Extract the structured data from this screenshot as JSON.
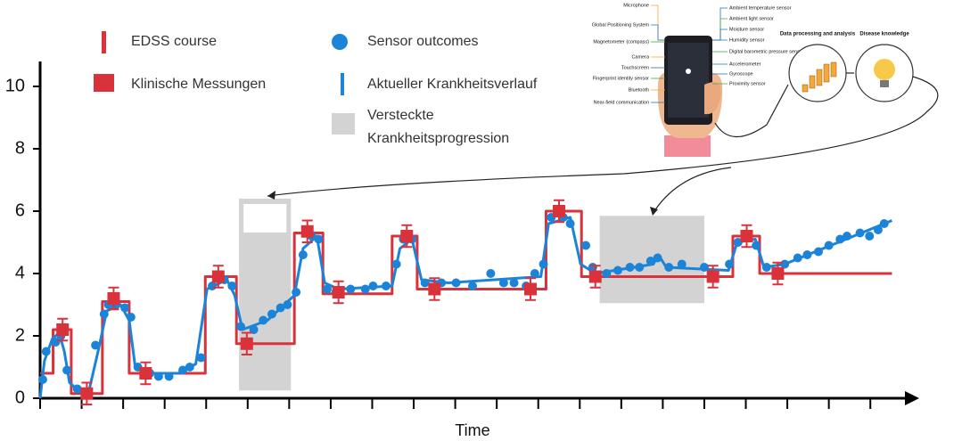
{
  "chart_data": {
    "type": "line",
    "x_label": "Time",
    "xlim": [
      0,
      100
    ],
    "xticks": [
      0,
      4.8,
      9.6,
      14.4,
      19.2,
      24,
      28.8,
      33.6,
      38.4,
      43.2,
      48,
      52.8,
      57.6,
      62.4,
      67.2,
      72,
      76.8,
      81.6,
      86.4,
      91.2,
      96
    ],
    "ylim": [
      0,
      10.8
    ],
    "yticks": [
      0,
      2,
      4,
      6,
      8,
      10
    ],
    "series": [
      {
        "name": "EDSS course",
        "color": "#d9323a",
        "x": [
          0,
          1.5,
          1.5,
          3.6,
          3.6,
          7.2,
          7.2,
          10.3,
          10.3,
          19.1,
          19.1,
          22.7,
          22.7,
          29.4,
          29.4,
          32.7,
          32.7,
          40.7,
          40.7,
          43.6,
          43.6,
          58.5,
          58.5,
          62.6,
          62.6,
          80.1,
          80.1,
          83.2,
          83.2,
          98.5
        ],
        "values": [
          0.8,
          0.8,
          2.2,
          2.2,
          0.15,
          0.15,
          3.1,
          3.1,
          0.8,
          0.8,
          3.9,
          3.9,
          1.75,
          1.75,
          5.3,
          5.3,
          3.35,
          3.35,
          5.2,
          5.2,
          3.5,
          3.5,
          6.0,
          6.0,
          3.9,
          3.9,
          5.2,
          5.2,
          4.0,
          4.0
        ]
      },
      {
        "name": "Klinische Messungen",
        "color": "#d9323a",
        "marker": "square",
        "x": [
          2.6,
          5.4,
          8.5,
          12.2,
          20.6,
          23.9,
          30.9,
          34.5,
          42.4,
          45.6,
          56.7,
          60.0,
          64.2,
          77.8,
          81.7,
          85.3
        ],
        "values": [
          2.2,
          0.15,
          3.2,
          0.8,
          3.9,
          1.75,
          5.35,
          3.4,
          5.2,
          3.5,
          3.5,
          6.0,
          3.9,
          3.9,
          5.2,
          4.0
        ],
        "errors": [
          0.35,
          0.35,
          0.35,
          0.35,
          0.35,
          0.35,
          0.35,
          0.35,
          0.35,
          0.35,
          0.35,
          0.35,
          0.35,
          0.35,
          0.35,
          0.35
        ]
      },
      {
        "name": "Sensor outcomes",
        "color": "#1b84d8",
        "marker": "circle",
        "x": [
          0.3,
          0.7,
          1.8,
          2.4,
          3.1,
          4.3,
          5.4,
          6.4,
          7.4,
          7.9,
          8.8,
          9.8,
          10.5,
          11.3,
          12.7,
          13.7,
          14.9,
          16.5,
          17.3,
          18.6,
          19.9,
          21.3,
          22.2,
          23.2,
          24.7,
          25.8,
          26.8,
          27.8,
          28.6,
          29.6,
          30.4,
          31.4,
          32.2,
          33.2,
          34.2,
          35.9,
          37.6,
          38.5,
          40.0,
          41.2,
          42.0,
          43.0,
          44.5,
          46.4,
          48.1,
          50.0,
          52.1,
          53.6,
          54.8,
          56.2,
          57.2,
          58.2,
          59.1,
          60.5,
          61.3,
          63.1,
          63.9,
          65.5,
          66.8,
          68.2,
          69.3,
          70.6,
          71.4,
          72.7,
          74.2,
          76.8,
          79.7,
          80.7,
          81.8,
          82.8,
          84.0,
          86.1,
          87.6,
          88.7,
          90.0,
          91.2,
          92.5,
          93.3,
          94.8,
          95.9,
          96.9,
          97.6
        ],
        "values": [
          0.6,
          1.5,
          1.8,
          2.0,
          0.9,
          0.3,
          0.2,
          1.7,
          2.7,
          3.0,
          3.0,
          2.9,
          2.6,
          1.0,
          0.8,
          0.7,
          0.7,
          0.9,
          1.0,
          1.3,
          3.6,
          3.8,
          3.6,
          2.3,
          2.2,
          2.5,
          2.7,
          2.9,
          3.0,
          3.4,
          4.6,
          5.2,
          5.1,
          3.5,
          3.4,
          3.5,
          3.5,
          3.6,
          3.6,
          4.3,
          5.1,
          5.1,
          3.7,
          3.7,
          3.7,
          3.6,
          4.0,
          3.7,
          3.7,
          3.6,
          4.0,
          4.3,
          5.8,
          5.8,
          5.6,
          4.9,
          4.2,
          4.0,
          4.1,
          4.2,
          4.2,
          4.4,
          4.5,
          4.2,
          4.3,
          4.2,
          4.3,
          5.0,
          5.2,
          4.9,
          4.2,
          4.3,
          4.5,
          4.6,
          4.7,
          4.9,
          5.1,
          5.2,
          5.3,
          5.2,
          5.4,
          5.6
        ]
      },
      {
        "name": "Aktueller Krankheitsverlauf",
        "color": "#1b84d8",
        "x": [
          0,
          0.5,
          1.4,
          2.2,
          2.8,
          3.4,
          4.6,
          5.7,
          6.7,
          7.7,
          9.3,
          10.3,
          11.0,
          12.4,
          16.0,
          18.0,
          19.3,
          21.6,
          22.5,
          23.4,
          26.3,
          29.4,
          30.4,
          32.0,
          32.9,
          34.5,
          40.7,
          41.6,
          43.0,
          44.1,
          47.2,
          57.9,
          58.8,
          61.3,
          62.5,
          64.2,
          70.9,
          71.5,
          72.4,
          79.6,
          80.6,
          82.7,
          83.7,
          86.1,
          98.5
        ],
        "values": [
          0,
          1.2,
          1.9,
          2.1,
          1.5,
          0.5,
          0.2,
          0.3,
          1.5,
          2.8,
          3.0,
          2.5,
          1.0,
          0.8,
          0.8,
          1.1,
          3.5,
          3.8,
          3.3,
          2.2,
          2.5,
          3.3,
          4.8,
          5.2,
          3.7,
          3.5,
          3.6,
          4.8,
          5.1,
          3.8,
          3.7,
          3.9,
          5.6,
          5.8,
          4.3,
          4.0,
          4.3,
          4.6,
          4.2,
          4.1,
          5.0,
          5.1,
          4.2,
          4.3,
          5.7
        ]
      }
    ],
    "regions": {
      "name": "Versteckte Krankheitsprogression",
      "color": "#d3d3d3",
      "spans": [
        {
          "x": [
            23.0,
            29.0
          ],
          "y": [
            0.25,
            6.4
          ]
        },
        {
          "x": [
            64.7,
            76.8
          ],
          "y": [
            3.05,
            5.85
          ]
        }
      ]
    },
    "illustration": {
      "left_sensors": [
        "Microphone",
        "Global Positioning System",
        "Magnetometer (compass)",
        "Camera",
        "Touchscreen",
        "Fingerprint identity sensor",
        "Bluetooth",
        "Near-field communication"
      ],
      "right_sensors": [
        "Ambient temperature sensor",
        "Ambient light sensor",
        "Moisture sensor",
        "Humidity sensor",
        "Digital barometric pressure sensor",
        "Accelerometer",
        "Gyroscope",
        "Proximity sensor"
      ],
      "steps": [
        "Data processing and analysis",
        "Disease knowledge"
      ]
    }
  }
}
